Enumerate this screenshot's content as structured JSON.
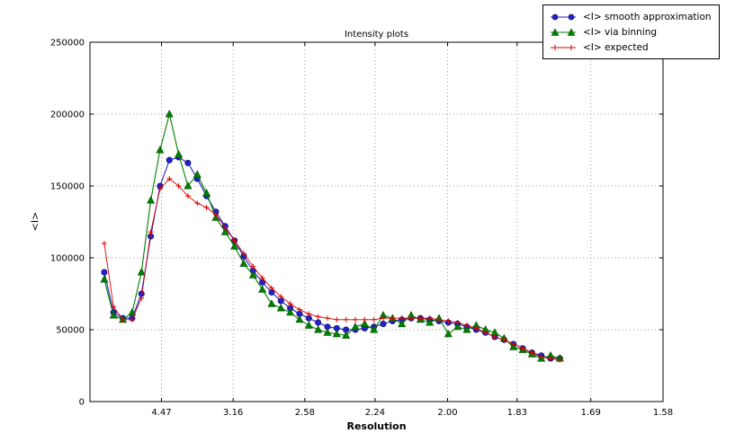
{
  "chart_data": {
    "type": "line",
    "title": "Intensity plots",
    "xlabel": "Resolution",
    "ylabel": "<I>",
    "grid": "dotted",
    "legend_position": "top-right",
    "xlim": [
      0.0,
      0.4006
    ],
    "ylim": [
      0,
      250000
    ],
    "x_axis": {
      "unit": "resolution (A), axis linear in 1/d^2",
      "tick_values": [
        0.05,
        0.1001,
        0.1502,
        0.1993,
        0.25,
        0.2986,
        0.3501,
        0.4006
      ],
      "tick_labels": [
        "4.47",
        "3.16",
        "2.58",
        "2.24",
        "2.00",
        "1.83",
        "1.69",
        "1.58"
      ]
    },
    "y_axis": {
      "tick_values": [
        0,
        50000,
        100000,
        150000,
        200000,
        250000
      ],
      "tick_labels": [
        "0",
        "50000",
        "100000",
        "150000",
        "200000",
        "250000"
      ]
    },
    "x_inv_d2": [
      0.01,
      0.0165,
      0.023,
      0.0295,
      0.036,
      0.0425,
      0.049,
      0.0555,
      0.062,
      0.0685,
      0.075,
      0.0815,
      0.088,
      0.0945,
      0.101,
      0.1075,
      0.114,
      0.1205,
      0.127,
      0.1335,
      0.14,
      0.1465,
      0.153,
      0.1595,
      0.166,
      0.1725,
      0.179,
      0.1855,
      0.192,
      0.1985,
      0.205,
      0.2115,
      0.218,
      0.2245,
      0.231,
      0.2375,
      0.244,
      0.2505,
      0.257,
      0.2635,
      0.27,
      0.2765,
      0.283,
      0.2895,
      0.296,
      0.3025,
      0.309,
      0.3155,
      0.322,
      0.3285
    ],
    "series": [
      {
        "name": "<I> smooth approximation",
        "color": "#2222cc",
        "marker": "circle",
        "values": [
          90000,
          62000,
          58000,
          58000,
          75000,
          115000,
          150000,
          168000,
          170000,
          166000,
          155000,
          143000,
          132000,
          122000,
          112000,
          101000,
          91000,
          83000,
          76000,
          70000,
          65000,
          61000,
          58000,
          55000,
          52000,
          51000,
          50000,
          50000,
          51000,
          52000,
          54000,
          56000,
          57000,
          58000,
          58000,
          57000,
          56000,
          55000,
          54000,
          52000,
          50000,
          48000,
          45000,
          43000,
          40000,
          37000,
          34000,
          32000,
          30000,
          30000
        ]
      },
      {
        "name": "<I> via binning",
        "color": "#008000",
        "marker": "triangle-up",
        "values": [
          85000,
          60000,
          57000,
          62000,
          90000,
          140000,
          175000,
          200000,
          172000,
          150000,
          158000,
          145000,
          128000,
          118000,
          108000,
          96000,
          88000,
          78000,
          68000,
          65000,
          62000,
          57000,
          53000,
          50000,
          48000,
          47000,
          46000,
          52000,
          54000,
          50000,
          60000,
          58000,
          54000,
          60000,
          57000,
          55000,
          58000,
          47000,
          52000,
          50000,
          53000,
          50000,
          48000,
          44000,
          38000,
          36000,
          33000,
          30000,
          32000,
          30000
        ]
      },
      {
        "name": "<I> expected",
        "color": "#dd0000",
        "marker": "plus",
        "values": [
          110000,
          66000,
          57000,
          57000,
          72000,
          118000,
          148000,
          155000,
          150000,
          143000,
          138000,
          135000,
          130000,
          121000,
          112000,
          103000,
          94000,
          86000,
          79000,
          73000,
          68000,
          64000,
          61000,
          59000,
          58000,
          57000,
          57000,
          57000,
          57000,
          57000,
          58000,
          58000,
          58000,
          58000,
          58000,
          58000,
          57000,
          56000,
          55000,
          53000,
          51000,
          48000,
          45000,
          43000,
          40000,
          37000,
          34000,
          31000,
          30000,
          29000
        ]
      }
    ]
  }
}
